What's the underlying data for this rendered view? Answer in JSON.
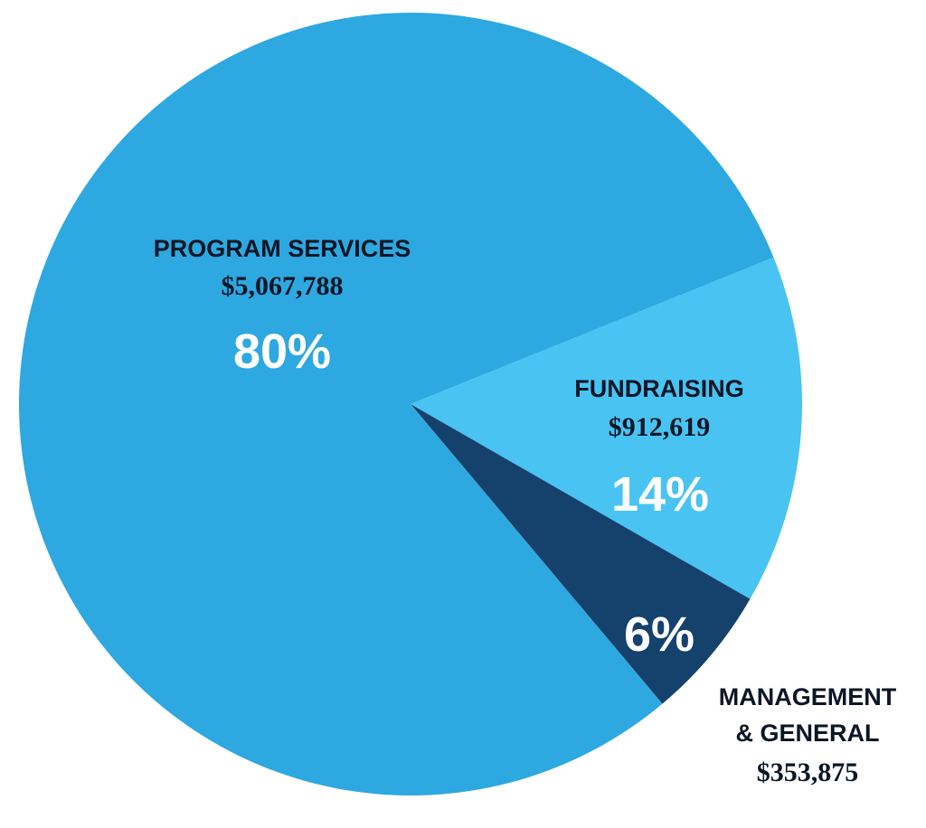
{
  "chart_data": {
    "type": "pie",
    "title": "",
    "legend": "none",
    "slices": [
      {
        "label_lines": [
          "PROGRAM SERVICES"
        ],
        "amount": "$5,067,788",
        "value": 5067788,
        "percent_label": "80%",
        "percent": 80,
        "color": "#2ea8e0"
      },
      {
        "label_lines": [
          "FUNDRAISING"
        ],
        "amount": "$912,619",
        "value": 912619,
        "percent_label": "14%",
        "percent": 14,
        "color": "#49c3f2"
      },
      {
        "label_lines": [
          "MANAGEMENT",
          "& GENERAL"
        ],
        "amount": "$353,875",
        "value": 353875,
        "percent_label": "6%",
        "percent": 6,
        "color": "#14426c"
      }
    ]
  }
}
